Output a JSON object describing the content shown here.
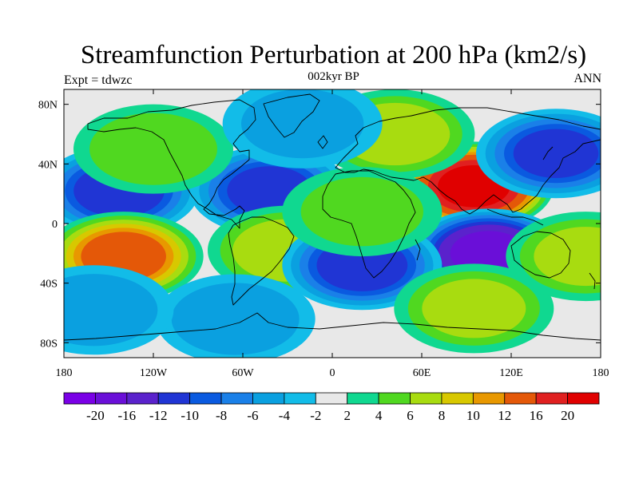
{
  "header": {
    "title": "Streamfunction Perturbation at 200 hPa (km2/s)",
    "left_label": "Expt = tdwzc",
    "center_label": "002kyr BP",
    "right_label": "ANN"
  },
  "axes": {
    "lon_ticks": [
      "180",
      "120W",
      "60W",
      "0",
      "60E",
      "120E",
      "180"
    ],
    "lat_ticks": [
      "80N",
      "40N",
      "0",
      "40S",
      "80S"
    ]
  },
  "colorbar": {
    "levels": [
      "-20",
      "-16",
      "-12",
      "-10",
      "-8",
      "-6",
      "-4",
      "-2",
      "2",
      "4",
      "6",
      "8",
      "10",
      "12",
      "16",
      "20"
    ],
    "colors": [
      "#7a00e6",
      "#6a0fd8",
      "#5a22cc",
      "#2035d4",
      "#0a5ae0",
      "#1a80e8",
      "#0aa0e0",
      "#12bce8",
      "#e8e8e8",
      "#10d890",
      "#50d820",
      "#a8dc10",
      "#d8c800",
      "#e89800",
      "#e45808",
      "#e02020",
      "#e00000"
    ]
  },
  "map_data": {
    "projection": "cylindrical-equidistant",
    "lon_range": [
      -180,
      180
    ],
    "lat_range": [
      -90,
      90
    ],
    "background_color": "#e8e8e8",
    "anomalies": [
      {
        "lon": -143,
        "lat": 22,
        "value": -11
      },
      {
        "lon": -140,
        "lat": -22,
        "value": 13
      },
      {
        "lon": -42,
        "lat": 22,
        "value": -10
      },
      {
        "lon": -30,
        "lat": -18,
        "value": 7
      },
      {
        "lon": 95,
        "lat": 25,
        "value": 21
      },
      {
        "lon": 42,
        "lat": 60,
        "value": 7
      },
      {
        "lon": -120,
        "lat": 50,
        "value": 5
      },
      {
        "lon": 150,
        "lat": 47,
        "value": -10
      },
      {
        "lon": 105,
        "lat": -20,
        "value": -17
      },
      {
        "lon": 20,
        "lat": -28,
        "value": -11
      },
      {
        "lon": -65,
        "lat": -64,
        "value": -5
      },
      {
        "lon": 95,
        "lat": -57,
        "value": 6
      },
      {
        "lon": 20,
        "lat": 8,
        "value": 4
      },
      {
        "lon": 170,
        "lat": -22,
        "value": 6
      },
      {
        "lon": -160,
        "lat": -58,
        "value": -5
      },
      {
        "lon": -20,
        "lat": 67,
        "value": -4
      }
    ]
  }
}
